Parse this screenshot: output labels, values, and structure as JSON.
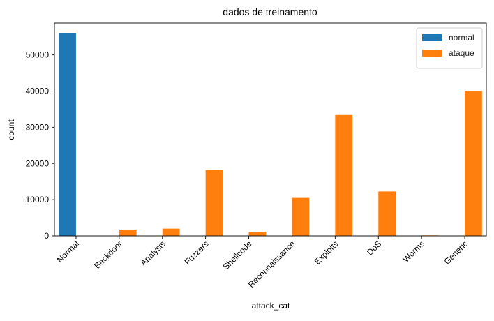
{
  "chart_data": {
    "type": "bar",
    "title": "dados de treinamento",
    "xlabel": "attack_cat",
    "ylabel": "count",
    "categories": [
      "Normal",
      "Backdoor",
      "Analysis",
      "Fuzzers",
      "Shellcode",
      "Reconnaissance",
      "Exploits",
      "DoS",
      "Worms",
      "Generic"
    ],
    "series": [
      {
        "name": "normal",
        "color": "#1f77b4",
        "values": [
          56000,
          0,
          0,
          0,
          0,
          0,
          0,
          0,
          0,
          0
        ]
      },
      {
        "name": "ataque",
        "color": "#ff7f0e",
        "values": [
          0,
          1746,
          2000,
          18184,
          1133,
          10491,
          33393,
          12264,
          130,
          40000
        ]
      }
    ],
    "ylim": [
      0,
      58800
    ],
    "yticks": [
      0,
      10000,
      20000,
      30000,
      40000,
      50000
    ],
    "legend": "top-right",
    "grid": false
  }
}
